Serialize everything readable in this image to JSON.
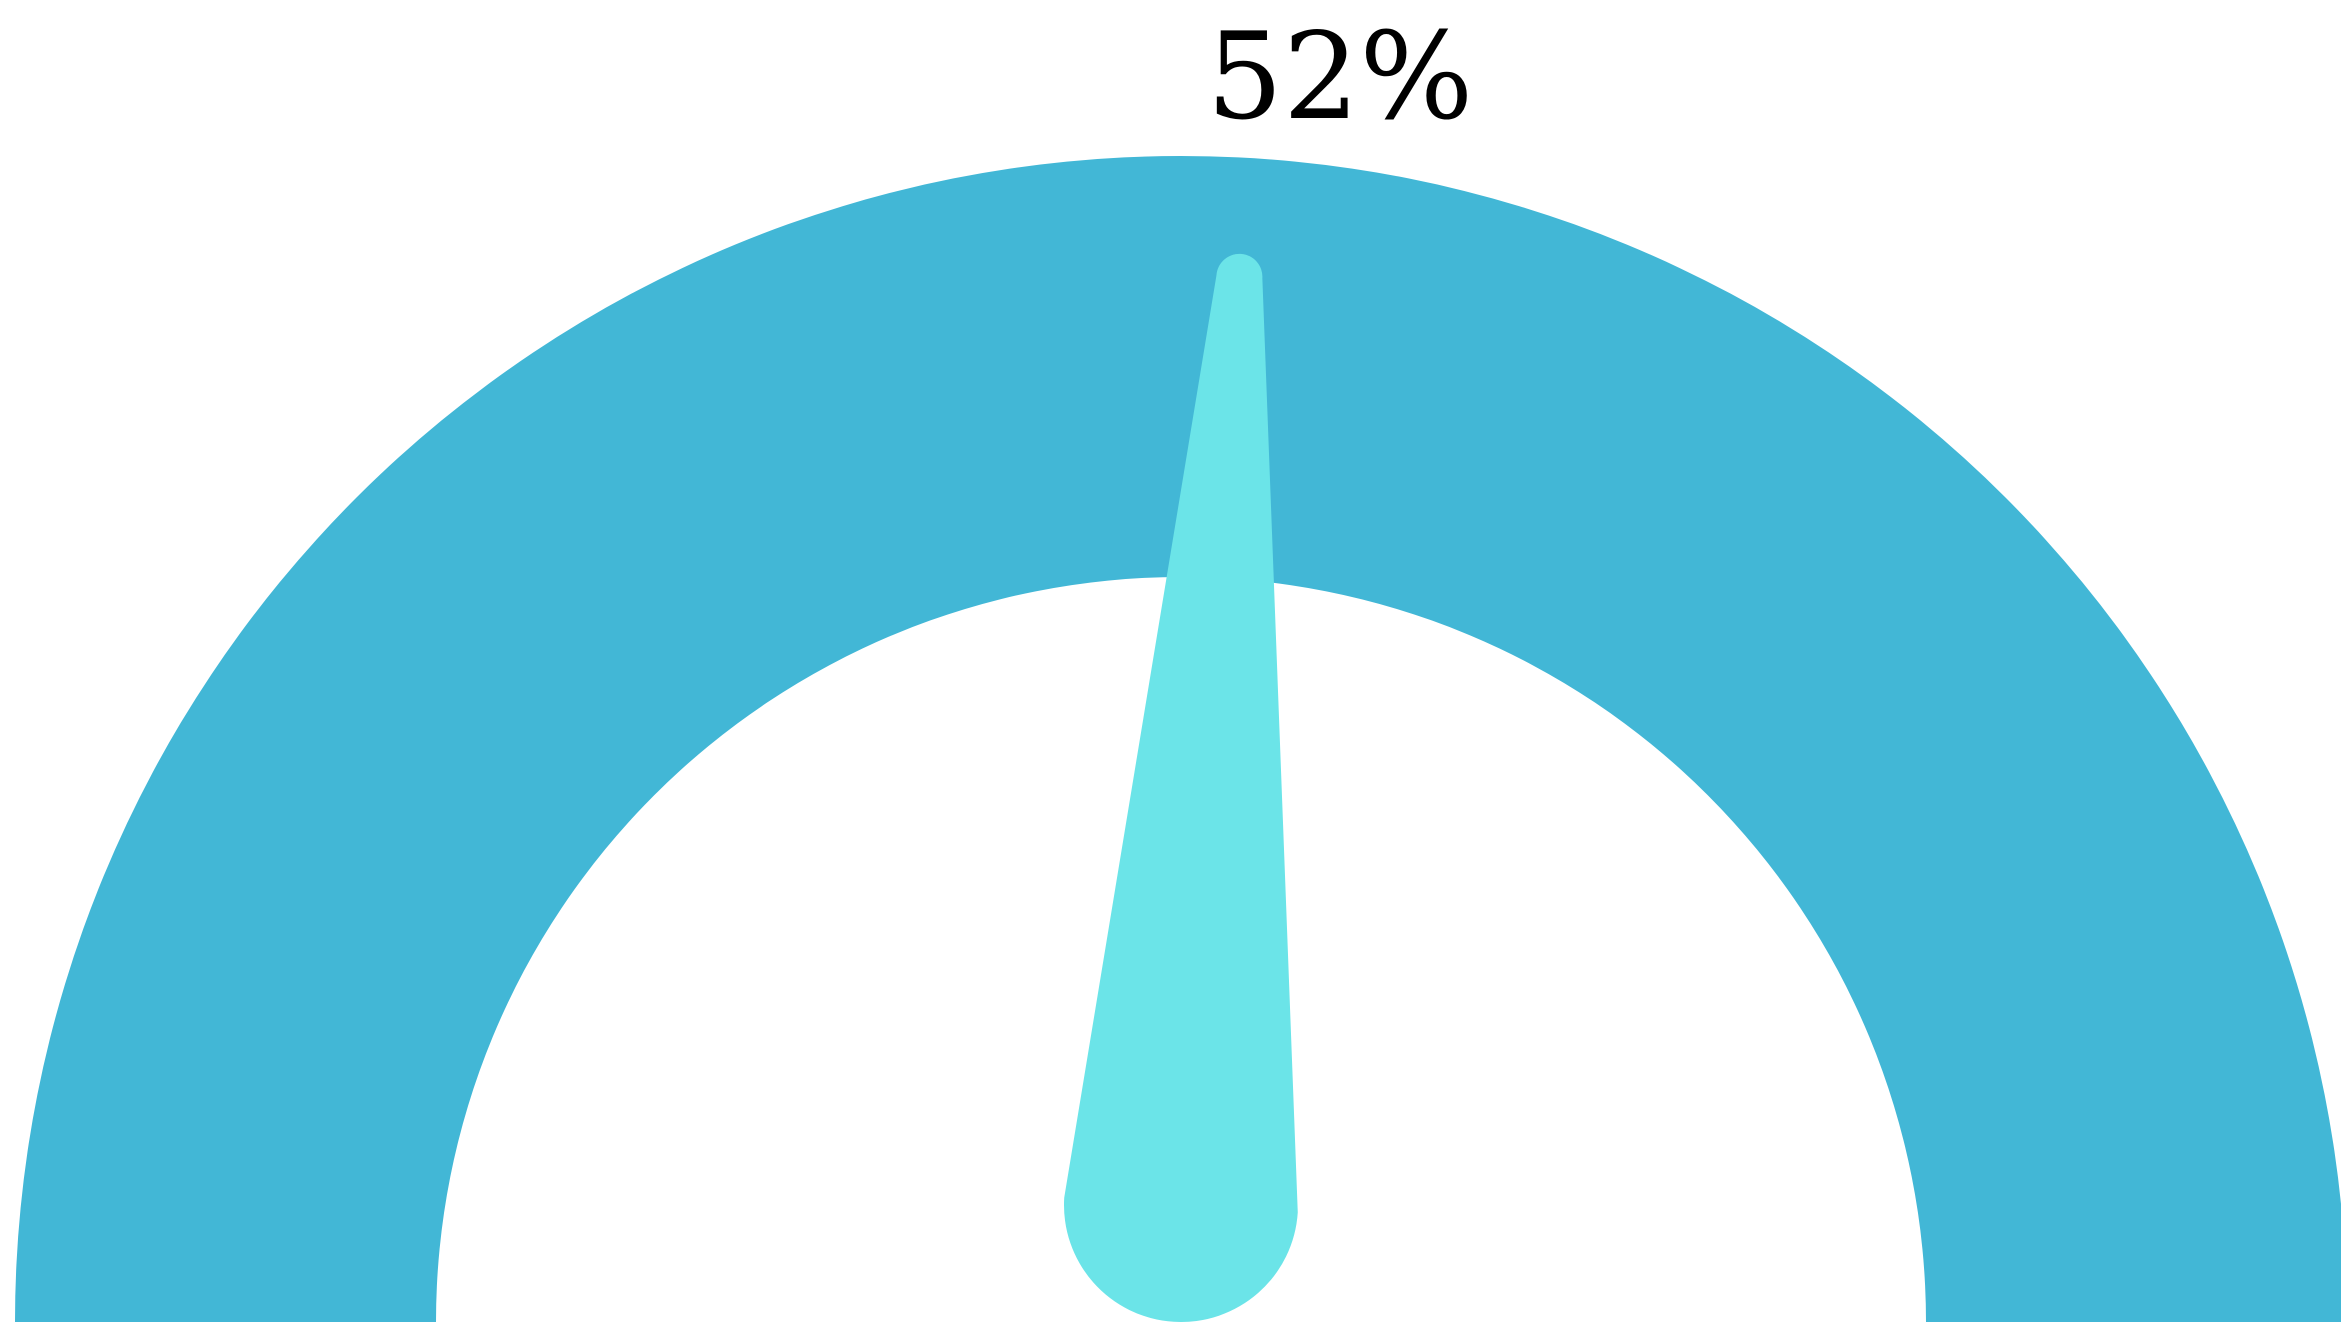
{
  "chart_data": {
    "type": "gauge",
    "value": 52,
    "min": 0,
    "max": 100,
    "value_label": "52%",
    "colors": {
      "track": "#42B7D6",
      "needle": "#6BE4E8",
      "label": "#000000",
      "background": "#FFFFFF"
    }
  }
}
